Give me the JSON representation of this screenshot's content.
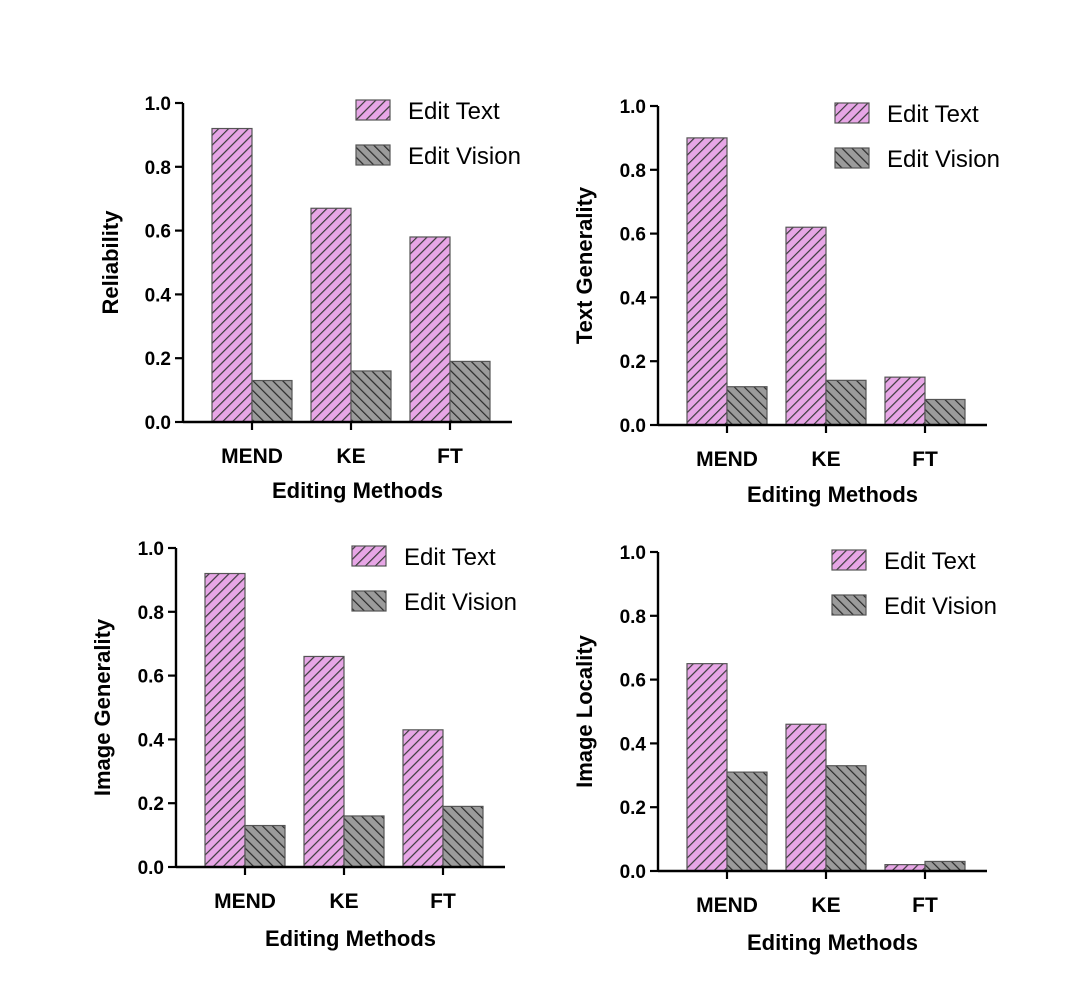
{
  "legend": [
    "Edit Text",
    "Edit Vision"
  ],
  "colors": {
    "edit_text_fill": "#e7a6e6",
    "edit_text_hatch": "#3a3a3a",
    "edit_vision_fill": "#9b9b9b",
    "edit_vision_hatch": "#2a2a2a"
  },
  "chart_data": [
    {
      "type": "bar",
      "categories": [
        "MEND",
        "KE",
        "FT"
      ],
      "series": [
        {
          "name": "Edit Text",
          "values": [
            0.92,
            0.67,
            0.58
          ]
        },
        {
          "name": "Edit Vision",
          "values": [
            0.13,
            0.16,
            0.19
          ]
        }
      ],
      "xlabel": "Editing Methods",
      "ylabel": "Reliability",
      "ylim": [
        0,
        1.0
      ],
      "yticks": [
        "0.0",
        "0.2",
        "0.4",
        "0.6",
        "0.8",
        "1.0"
      ],
      "legend_position": "top-right",
      "grid": false
    },
    {
      "type": "bar",
      "categories": [
        "MEND",
        "KE",
        "FT"
      ],
      "series": [
        {
          "name": "Edit Text",
          "values": [
            0.9,
            0.62,
            0.15
          ]
        },
        {
          "name": "Edit Vision",
          "values": [
            0.12,
            0.14,
            0.08
          ]
        }
      ],
      "xlabel": "Editing Methods",
      "ylabel": "Text Generality",
      "ylim": [
        0,
        1.0
      ],
      "yticks": [
        "0.0",
        "0.2",
        "0.4",
        "0.6",
        "0.8",
        "1.0"
      ],
      "legend_position": "top-right",
      "grid": false
    },
    {
      "type": "bar",
      "categories": [
        "MEND",
        "KE",
        "FT"
      ],
      "series": [
        {
          "name": "Edit Text",
          "values": [
            0.92,
            0.66,
            0.43
          ]
        },
        {
          "name": "Edit Vision",
          "values": [
            0.13,
            0.16,
            0.19
          ]
        }
      ],
      "xlabel": "Editing Methods",
      "ylabel": "Image Generality",
      "ylim": [
        0,
        1.0
      ],
      "yticks": [
        "0.0",
        "0.2",
        "0.4",
        "0.6",
        "0.8",
        "1.0"
      ],
      "legend_position": "top-right",
      "grid": false
    },
    {
      "type": "bar",
      "categories": [
        "MEND",
        "KE",
        "FT"
      ],
      "series": [
        {
          "name": "Edit Text",
          "values": [
            0.65,
            0.46,
            0.02
          ]
        },
        {
          "name": "Edit Vision",
          "values": [
            0.31,
            0.33,
            0.03
          ]
        }
      ],
      "xlabel": "Editing Methods",
      "ylabel": "Image Locality",
      "ylim": [
        0,
        1.0
      ],
      "yticks": [
        "0.0",
        "0.2",
        "0.4",
        "0.6",
        "0.8",
        "1.0"
      ],
      "legend_position": "top-right",
      "grid": false
    }
  ]
}
